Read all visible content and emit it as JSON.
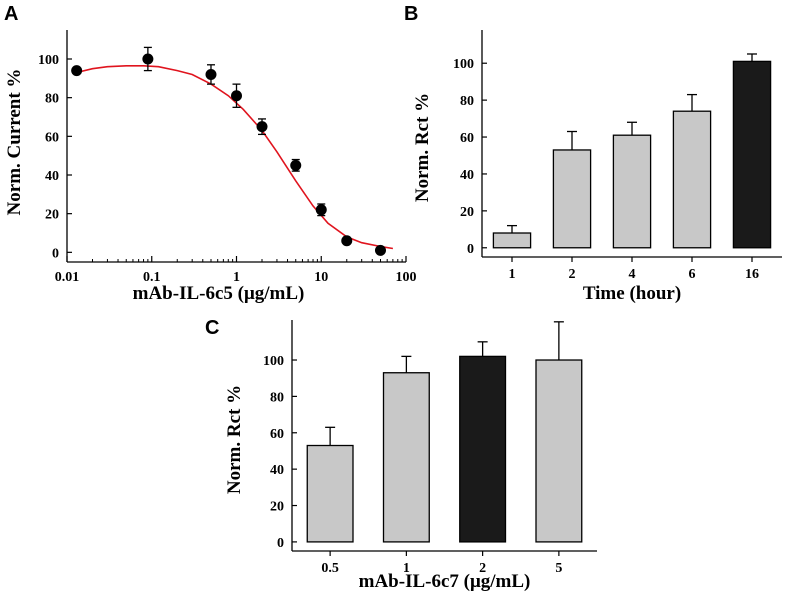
{
  "chart_data": [
    {
      "panel": "A",
      "type": "scatter",
      "xlabel": "mAb-IL-6c5 (μg/mL)",
      "ylabel": "Norm. Current %",
      "xscale": "log",
      "xlim": [
        0.01,
        100
      ],
      "ylim": [
        -5,
        115
      ],
      "xticks": [
        0.01,
        0.1,
        1,
        10,
        100
      ],
      "xtick_labels": [
        "0.01",
        "0.1",
        "1",
        "10",
        "100"
      ],
      "yticks": [
        0,
        20,
        40,
        60,
        80,
        100
      ],
      "ytick_labels": [
        "0",
        "20",
        "40",
        "60",
        "80",
        "100"
      ],
      "points": [
        {
          "x": 0.013,
          "y": 94,
          "err": 0
        },
        {
          "x": 0.09,
          "y": 100,
          "err": 6
        },
        {
          "x": 0.5,
          "y": 92,
          "err": 5
        },
        {
          "x": 1.0,
          "y": 81,
          "err": 6
        },
        {
          "x": 2.0,
          "y": 65,
          "err": 4
        },
        {
          "x": 5.0,
          "y": 45,
          "err": 3
        },
        {
          "x": 10.0,
          "y": 22,
          "err": 3
        },
        {
          "x": 20.0,
          "y": 6,
          "err": 0
        },
        {
          "x": 50.0,
          "y": 1,
          "err": 0
        }
      ],
      "fit_line": {
        "color": "#e0141e",
        "x": [
          0.013,
          0.02,
          0.03,
          0.05,
          0.08,
          0.12,
          0.2,
          0.3,
          0.5,
          0.8,
          1.2,
          2,
          3,
          5,
          8,
          12,
          20,
          30,
          50,
          70
        ],
        "y": [
          93,
          95,
          96,
          96.5,
          96.5,
          96,
          94,
          92,
          87,
          81,
          74,
          63,
          52,
          37,
          24,
          15,
          8,
          5,
          3,
          2
        ]
      },
      "marker_color": "#000000"
    },
    {
      "panel": "B",
      "type": "bar",
      "xlabel": "Time (hour)",
      "ylabel": "Norm. Rct %",
      "categories": [
        "1",
        "2",
        "4",
        "6",
        "16"
      ],
      "values": [
        8,
        53,
        61,
        74,
        101
      ],
      "errors": [
        4,
        10,
        7,
        9,
        4
      ],
      "colors": [
        "#c8c8c8",
        "#c8c8c8",
        "#c8c8c8",
        "#c8c8c8",
        "#1a1a1a"
      ],
      "ylim": [
        -5,
        118
      ],
      "yticks": [
        0,
        20,
        40,
        60,
        80,
        100
      ],
      "ytick_labels": [
        "0",
        "20",
        "40",
        "60",
        "80",
        "100"
      ]
    },
    {
      "panel": "C",
      "type": "bar",
      "xlabel": "mAb-IL-6c7 (μg/mL)",
      "ylabel": "Norm. Rct %",
      "categories": [
        "0.5",
        "1",
        "2",
        "5"
      ],
      "values": [
        53,
        93,
        102,
        100
      ],
      "errors": [
        10,
        9,
        8,
        21
      ],
      "colors": [
        "#c8c8c8",
        "#c8c8c8",
        "#1a1a1a",
        "#c8c8c8"
      ],
      "ylim": [
        -5,
        122
      ],
      "yticks": [
        0,
        20,
        40,
        60,
        80,
        100
      ],
      "ytick_labels": [
        "0",
        "20",
        "40",
        "60",
        "80",
        "100"
      ]
    }
  ]
}
